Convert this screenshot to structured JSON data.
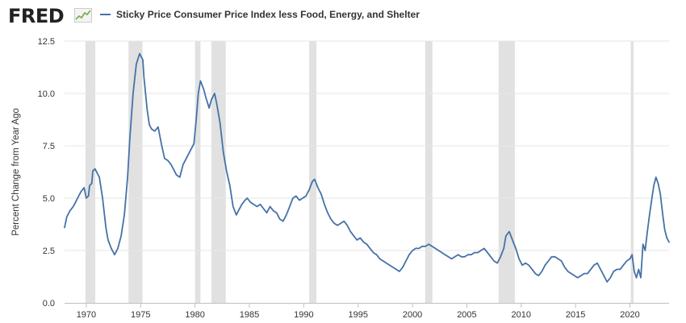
{
  "header": {
    "logo_text": "FRED",
    "logo_icon": "chart-line-icon",
    "legend_label": "Sticky Price Consumer Price Index less Food, Energy, and Shelter"
  },
  "colors": {
    "series": "#4572a7",
    "recession": "#e1e1e1",
    "grid": "#e6e6e6",
    "axis": "#c0c0c0",
    "logo_graph": "#7bb04f"
  },
  "chart_data": {
    "type": "line",
    "title": "",
    "xlabel": "",
    "ylabel": "Percent Change from Year Ago",
    "xlim": [
      1968.0,
      2023.6
    ],
    "ylim": [
      0,
      12.5
    ],
    "x_ticks": [
      1970,
      1975,
      1980,
      1985,
      1990,
      1995,
      2000,
      2005,
      2010,
      2015,
      2020
    ],
    "y_ticks": [
      0.0,
      2.5,
      5.0,
      7.5,
      10.0,
      12.5
    ],
    "y_tick_labels": [
      "0.0",
      "2.5",
      "5.0",
      "7.5",
      "10.0",
      "12.5"
    ],
    "grid": true,
    "legend_position": "top-left",
    "recessions": [
      [
        1969.92,
        1970.83
      ],
      [
        1973.88,
        1975.17
      ],
      [
        1980.0,
        1980.5
      ],
      [
        1981.5,
        1982.83
      ],
      [
        1990.5,
        1991.17
      ],
      [
        2001.17,
        2001.83
      ],
      [
        2007.92,
        2009.42
      ],
      [
        2020.08,
        2020.33
      ]
    ],
    "series": [
      {
        "name": "Sticky Price Consumer Price Index less Food, Energy, and Shelter",
        "x": [
          1968.0,
          1968.2,
          1968.5,
          1968.8,
          1969.0,
          1969.3,
          1969.5,
          1969.8,
          1970.0,
          1970.2,
          1970.3,
          1970.5,
          1970.6,
          1970.8,
          1971.0,
          1971.2,
          1971.5,
          1971.8,
          1972.0,
          1972.3,
          1972.6,
          1972.9,
          1973.2,
          1973.5,
          1973.8,
          1974.0,
          1974.3,
          1974.6,
          1974.9,
          1975.2,
          1975.3,
          1975.6,
          1975.8,
          1976.0,
          1976.3,
          1976.6,
          1976.9,
          1977.2,
          1977.5,
          1977.8,
          1978.0,
          1978.3,
          1978.6,
          1978.9,
          1979.2,
          1979.5,
          1979.7,
          1979.9,
          1980.1,
          1980.3,
          1980.5,
          1980.8,
          1981.0,
          1981.3,
          1981.5,
          1981.8,
          1982.0,
          1982.3,
          1982.6,
          1982.9,
          1983.2,
          1983.5,
          1983.8,
          1984.0,
          1984.3,
          1984.6,
          1984.8,
          1985.1,
          1985.4,
          1985.7,
          1986.0,
          1986.3,
          1986.6,
          1986.9,
          1987.2,
          1987.5,
          1987.8,
          1988.1,
          1988.4,
          1988.7,
          1989.0,
          1989.3,
          1989.6,
          1989.9,
          1990.2,
          1990.5,
          1990.8,
          1991.0,
          1991.3,
          1991.6,
          1991.9,
          1992.2,
          1992.5,
          1992.8,
          1993.1,
          1993.4,
          1993.7,
          1994.0,
          1994.3,
          1994.6,
          1994.9,
          1995.2,
          1995.5,
          1995.8,
          1996.1,
          1996.4,
          1996.7,
          1997.0,
          1997.3,
          1997.6,
          1997.9,
          1998.2,
          1998.5,
          1998.8,
          1999.1,
          1999.4,
          1999.7,
          2000.0,
          2000.3,
          2000.6,
          2000.9,
          2001.2,
          2001.5,
          2001.8,
          2002.1,
          2002.4,
          2002.7,
          2003.0,
          2003.3,
          2003.6,
          2003.9,
          2004.2,
          2004.5,
          2004.8,
          2005.1,
          2005.4,
          2005.7,
          2006.0,
          2006.3,
          2006.6,
          2006.9,
          2007.2,
          2007.5,
          2007.8,
          2008.1,
          2008.4,
          2008.6,
          2008.9,
          2009.2,
          2009.5,
          2009.8,
          2010.1,
          2010.4,
          2010.7,
          2011.0,
          2011.3,
          2011.6,
          2011.9,
          2012.2,
          2012.5,
          2012.8,
          2013.1,
          2013.4,
          2013.7,
          2014.0,
          2014.3,
          2014.6,
          2014.9,
          2015.2,
          2015.5,
          2015.8,
          2016.1,
          2016.4,
          2016.7,
          2017.0,
          2017.3,
          2017.6,
          2017.9,
          2018.2,
          2018.5,
          2018.8,
          2019.1,
          2019.4,
          2019.7,
          2020.0,
          2020.2,
          2020.4,
          2020.6,
          2020.8,
          2021.0,
          2021.2,
          2021.4,
          2021.6,
          2021.8,
          2022.0,
          2022.2,
          2022.4,
          2022.6,
          2022.8,
          2023.0,
          2023.2,
          2023.4,
          2023.6
        ],
        "values": [
          3.6,
          4.1,
          4.4,
          4.6,
          4.8,
          5.1,
          5.3,
          5.5,
          5.0,
          5.1,
          5.6,
          5.7,
          6.3,
          6.4,
          6.2,
          6.0,
          5.0,
          3.6,
          3.0,
          2.6,
          2.3,
          2.6,
          3.2,
          4.2,
          6.0,
          7.8,
          10.0,
          11.4,
          11.9,
          11.6,
          10.8,
          9.2,
          8.5,
          8.3,
          8.2,
          8.4,
          7.6,
          6.9,
          6.8,
          6.6,
          6.4,
          6.1,
          6.0,
          6.6,
          6.9,
          7.2,
          7.4,
          7.6,
          8.7,
          10.0,
          10.6,
          10.2,
          9.8,
          9.3,
          9.7,
          10.0,
          9.5,
          8.6,
          7.2,
          6.3,
          5.6,
          4.6,
          4.2,
          4.4,
          4.7,
          4.9,
          5.0,
          4.8,
          4.7,
          4.6,
          4.7,
          4.5,
          4.3,
          4.6,
          4.4,
          4.3,
          4.0,
          3.9,
          4.2,
          4.6,
          5.0,
          5.1,
          4.9,
          5.0,
          5.1,
          5.4,
          5.8,
          5.9,
          5.5,
          5.2,
          4.7,
          4.3,
          4.0,
          3.8,
          3.7,
          3.8,
          3.9,
          3.7,
          3.4,
          3.2,
          3.0,
          3.1,
          2.9,
          2.8,
          2.6,
          2.4,
          2.3,
          2.1,
          2.0,
          1.9,
          1.8,
          1.7,
          1.6,
          1.5,
          1.7,
          2.0,
          2.3,
          2.5,
          2.6,
          2.6,
          2.7,
          2.7,
          2.8,
          2.7,
          2.6,
          2.5,
          2.4,
          2.3,
          2.2,
          2.1,
          2.2,
          2.3,
          2.2,
          2.2,
          2.3,
          2.3,
          2.4,
          2.4,
          2.5,
          2.6,
          2.4,
          2.2,
          2.0,
          1.9,
          2.2,
          2.6,
          3.2,
          3.4,
          3.0,
          2.6,
          2.1,
          1.8,
          1.9,
          1.8,
          1.6,
          1.4,
          1.3,
          1.5,
          1.8,
          2.0,
          2.2,
          2.2,
          2.1,
          2.0,
          1.7,
          1.5,
          1.4,
          1.3,
          1.2,
          1.3,
          1.4,
          1.4,
          1.6,
          1.8,
          1.9,
          1.6,
          1.3,
          1.0,
          1.2,
          1.5,
          1.6,
          1.6,
          1.8,
          2.0,
          2.1,
          2.3,
          1.5,
          1.2,
          1.6,
          1.2,
          2.8,
          2.5,
          3.4,
          4.2,
          4.9,
          5.6,
          6.0,
          5.7,
          5.2,
          4.3,
          3.5,
          3.1,
          2.9
        ]
      }
    ]
  }
}
